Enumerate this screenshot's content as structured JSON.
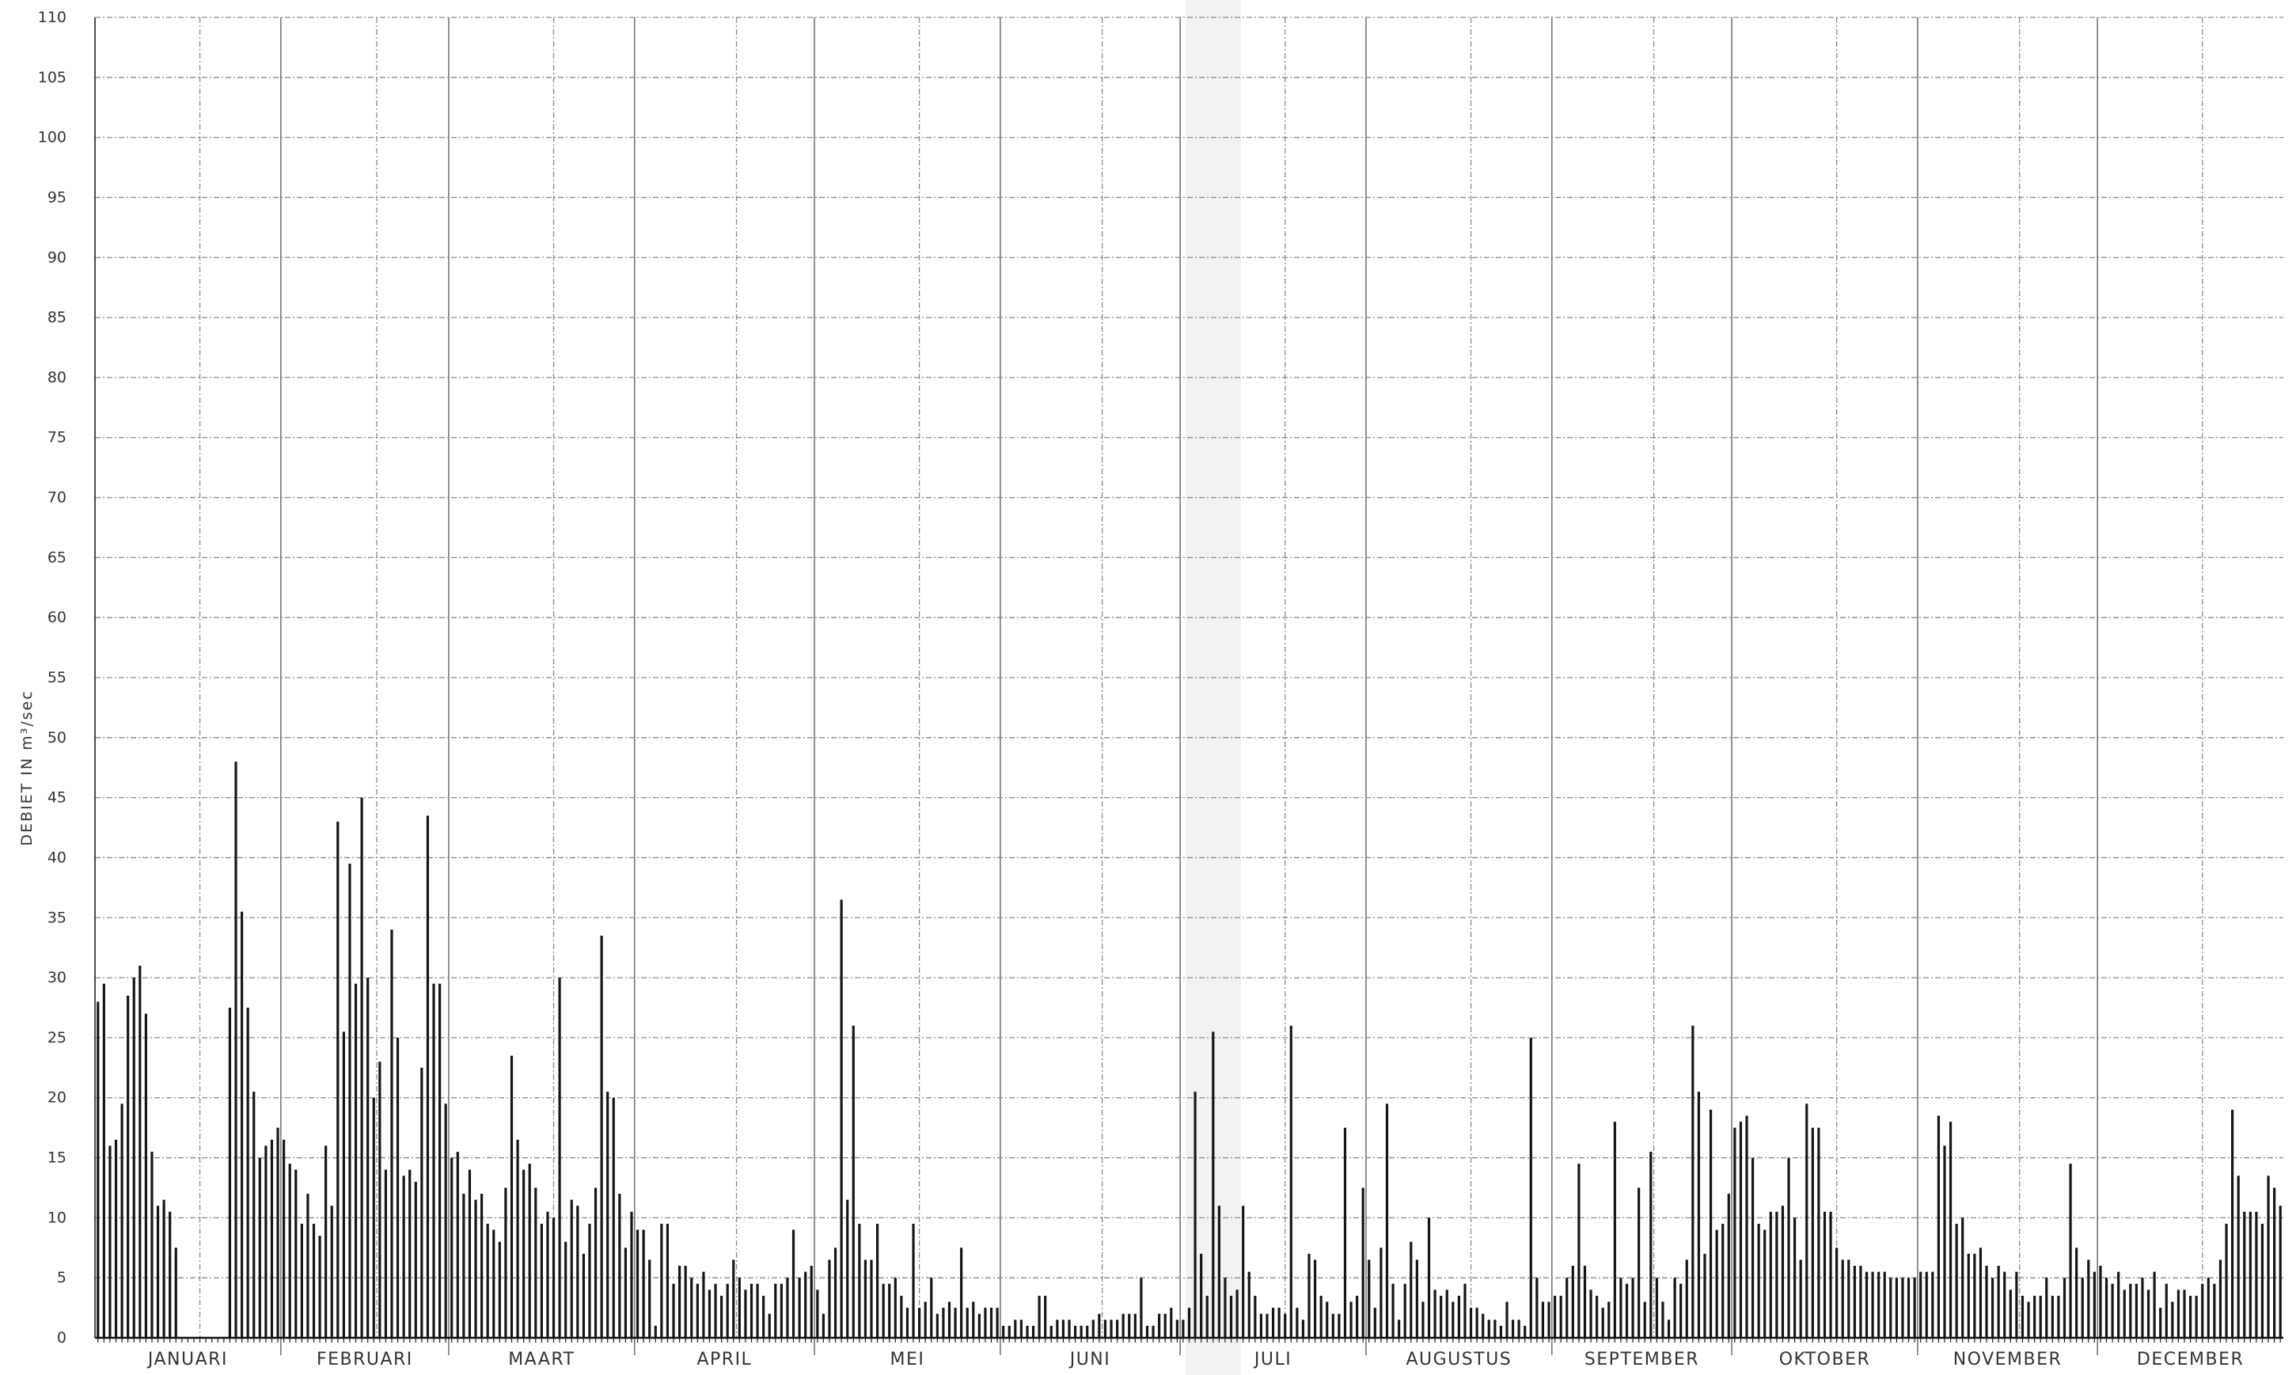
{
  "chart_data": {
    "type": "bar",
    "ylabel": "DEBIET IN m³/sec",
    "ylim": [
      0,
      110
    ],
    "yticks": [
      0,
      5,
      10,
      15,
      20,
      25,
      30,
      35,
      40,
      45,
      50,
      55,
      60,
      65,
      70,
      75,
      80,
      85,
      90,
      95,
      100,
      105,
      110
    ],
    "grid": true,
    "months": [
      "JANUARI",
      "FEBRUARI",
      "MAART",
      "APRIL",
      "MEI",
      "JUNI",
      "JULI",
      "AUGUSTUS",
      "SEPTEMBER",
      "OKTOBER",
      "NOVEMBER",
      "DECEMBER"
    ],
    "daily_values": {
      "JANUARI": [
        28,
        29.5,
        16,
        16.5,
        19.5,
        28.5,
        30,
        31,
        27,
        15.5,
        11,
        11.5,
        10.5,
        7.5,
        0,
        0,
        0,
        0,
        0,
        0,
        0,
        0,
        27.5,
        48,
        35.5,
        27.5,
        20.5,
        15,
        16,
        16.5,
        17.5
      ],
      "FEBRUARI": [
        16.5,
        14.5,
        14,
        9.5,
        12,
        9.5,
        8.5,
        16,
        11,
        43,
        25.5,
        39.5,
        29.5,
        45,
        30,
        20,
        23,
        14,
        34,
        25,
        13.5,
        14,
        13,
        22.5,
        43.5,
        29.5,
        29.5,
        19.5
      ],
      "MAART": [
        15,
        15.5,
        12,
        14,
        11.5,
        12,
        9.5,
        9,
        8,
        12.5,
        23.5,
        16.5,
        14,
        14.5,
        12.5,
        9.5,
        10.5,
        10,
        30,
        8,
        11.5,
        11,
        7,
        9.5,
        12.5,
        33.5,
        20.5,
        20,
        12,
        7.5,
        10.5
      ],
      "APRIL": [
        9,
        9,
        6.5,
        1,
        9.5,
        9.5,
        4.5,
        6,
        6,
        5,
        4.5,
        5.5,
        4,
        4.5,
        3.5,
        4.5,
        6.5,
        5,
        4,
        4.5,
        4.5,
        3.5,
        2,
        4.5,
        4.5,
        5,
        9,
        5,
        5.5,
        6
      ],
      "MEI": [
        4,
        2,
        6.5,
        7.5,
        36.5,
        11.5,
        26,
        9.5,
        6.5,
        6.5,
        9.5,
        4.5,
        4.5,
        5,
        3.5,
        2.5,
        9.5,
        2.5,
        3,
        5,
        2,
        2.5,
        3,
        2.5,
        7.5,
        2.5,
        3,
        2,
        2.5,
        2.5,
        2.5
      ],
      "JUNI": [
        1,
        1,
        1.5,
        1.5,
        1,
        1,
        3.5,
        3.5,
        1,
        1.5,
        1.5,
        1.5,
        1,
        1,
        1,
        1.5,
        2,
        1.5,
        1.5,
        1.5,
        2,
        2,
        2,
        5,
        1,
        1,
        2,
        2,
        2.5,
        1.5
      ],
      "JULI": [
        1.5,
        2.5,
        20.5,
        7,
        3.5,
        25.5,
        11,
        5,
        3.5,
        4,
        11,
        5.5,
        3.5,
        2,
        2,
        2.5,
        2.5,
        2,
        26,
        2.5,
        1.5,
        7,
        6.5,
        3.5,
        3,
        2,
        2,
        17.5,
        3,
        3.5,
        12.5
      ],
      "AUGUSTUS": [
        6.5,
        2.5,
        7.5,
        19.5,
        4.5,
        1.5,
        4.5,
        8,
        6.5,
        3,
        10,
        4,
        3.5,
        4,
        3,
        3.5,
        4.5,
        2.5,
        2.5,
        2,
        1.5,
        1.5,
        1,
        3,
        1.5,
        1.5,
        1,
        25,
        5,
        3,
        3
      ],
      "SEPTEMBER": [
        3.5,
        3.5,
        5,
        6,
        14.5,
        6,
        4,
        3.5,
        2.5,
        3,
        18,
        5,
        4.5,
        5,
        12.5,
        3,
        15.5,
        5,
        3,
        1.5,
        5,
        4.5,
        6.5,
        26,
        20.5,
        7,
        19,
        9,
        9.5,
        12
      ],
      "OKTOBER": [
        17.5,
        18,
        18.5,
        15,
        9.5,
        9,
        10.5,
        10.5,
        11,
        15,
        10,
        6.5,
        19.5,
        17.5,
        17.5,
        10.5,
        10.5,
        7.5,
        6.5,
        6.5,
        6,
        6,
        5.5,
        5.5,
        5.5,
        5.5,
        5,
        5,
        5,
        5,
        5
      ],
      "NOVEMBER": [
        5.5,
        5.5,
        5.5,
        18.5,
        16,
        18,
        9.5,
        10,
        7,
        7,
        7.5,
        6,
        5,
        6,
        5.5,
        4,
        5.5,
        3.5,
        3,
        3.5,
        3.5,
        5,
        3.5,
        3.5,
        5,
        14.5,
        7.5,
        5,
        6.5,
        5.5
      ],
      "DECEMBER": [
        6,
        5,
        4.5,
        5.5,
        4,
        4.5,
        4.5,
        5,
        4,
        5.5,
        2.5,
        4.5,
        3,
        4,
        4,
        3.5,
        3.5,
        4.5,
        5,
        4.5,
        6.5,
        9.5,
        19,
        13.5,
        10.5,
        10.5,
        10.5,
        9.5,
        13.5,
        12.5,
        11
      ]
    }
  }
}
